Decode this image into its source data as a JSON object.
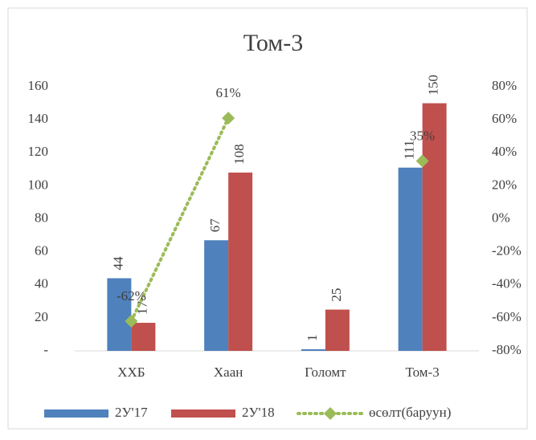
{
  "chart_data": {
    "type": "bar",
    "title": "Том-3",
    "categories": [
      "ХХБ",
      "Хаан",
      "Голомт",
      "Том-3"
    ],
    "series": [
      {
        "name": "2У'17",
        "color": "#4f81bd",
        "values": [
          44,
          67,
          1,
          111
        ]
      },
      {
        "name": "2У'18",
        "color": "#c0504d",
        "values": [
          17,
          108,
          25,
          150
        ]
      },
      {
        "name": "өсөлт(баруун)",
        "color": "#9bbb59",
        "type": "line",
        "axis": "y2",
        "values": [
          -62,
          61,
          null,
          35
        ],
        "value_labels": [
          "-62%",
          "61%",
          null,
          "35%"
        ]
      }
    ],
    "ylim": [
      0,
      160
    ],
    "yticks": [
      {
        "value": 0,
        "label": "-"
      },
      20,
      40,
      60,
      80,
      100,
      120,
      140,
      160
    ],
    "y2lim": [
      -80,
      80
    ],
    "y2ticks": [
      {
        "value": -80,
        "label": "-80%"
      },
      {
        "value": -60,
        "label": "-60%"
      },
      {
        "value": -40,
        "label": "-40%"
      },
      {
        "value": -20,
        "label": "-20%"
      },
      {
        "value": 0,
        "label": "0%"
      },
      {
        "value": 20,
        "label": "20%"
      },
      {
        "value": 40,
        "label": "40%"
      },
      {
        "value": 60,
        "label": "60%"
      },
      {
        "value": 80,
        "label": "80%"
      }
    ],
    "legend": "bottom"
  }
}
